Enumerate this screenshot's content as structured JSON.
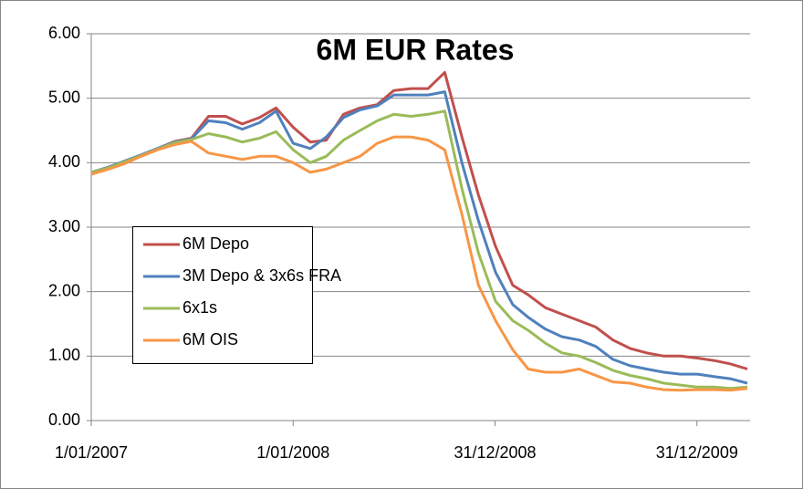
{
  "chart_data": {
    "type": "line",
    "title": "6M EUR Rates",
    "x": [
      "2007-01-01",
      "2007-02-01",
      "2007-03-01",
      "2007-04-01",
      "2007-05-01",
      "2007-06-01",
      "2007-07-01",
      "2007-08-01",
      "2007-09-01",
      "2007-10-01",
      "2007-11-01",
      "2007-12-01",
      "2008-01-01",
      "2008-02-01",
      "2008-03-01",
      "2008-04-01",
      "2008-05-01",
      "2008-06-01",
      "2008-07-01",
      "2008-08-01",
      "2008-09-01",
      "2008-10-01",
      "2008-11-01",
      "2008-12-01",
      "2009-01-01",
      "2009-02-01",
      "2009-03-01",
      "2009-04-01",
      "2009-05-01",
      "2009-06-01",
      "2009-07-01",
      "2009-08-01",
      "2009-09-01",
      "2009-10-01",
      "2009-11-01",
      "2009-12-01",
      "2010-01-01",
      "2010-02-01",
      "2010-03-01",
      "2010-04-01"
    ],
    "series": [
      {
        "name": "6M Depo",
        "color": "#c0504d",
        "values": [
          3.85,
          3.93,
          4.02,
          4.12,
          4.22,
          4.33,
          4.38,
          4.72,
          4.72,
          4.6,
          4.7,
          4.85,
          4.55,
          4.32,
          4.35,
          4.75,
          4.85,
          4.9,
          5.12,
          5.15,
          5.15,
          5.4,
          4.4,
          3.5,
          2.7,
          2.1,
          1.95,
          1.75,
          1.65,
          1.55,
          1.45,
          1.25,
          1.12,
          1.05,
          1.0,
          1.0,
          0.97,
          0.93,
          0.88,
          0.8
        ]
      },
      {
        "name": "3M Depo & 3x6s FRA",
        "color": "#4f81bd",
        "values": [
          3.85,
          3.93,
          4.02,
          4.12,
          4.22,
          4.32,
          4.37,
          4.65,
          4.62,
          4.52,
          4.62,
          4.8,
          4.3,
          4.22,
          4.4,
          4.7,
          4.82,
          4.88,
          5.05,
          5.05,
          5.05,
          5.1,
          4.0,
          3.1,
          2.3,
          1.8,
          1.6,
          1.42,
          1.3,
          1.25,
          1.15,
          0.95,
          0.85,
          0.8,
          0.75,
          0.72,
          0.72,
          0.68,
          0.65,
          0.58
        ]
      },
      {
        "name": "6x1s",
        "color": "#9bbb59",
        "values": [
          3.85,
          3.92,
          4.01,
          4.11,
          4.21,
          4.31,
          4.36,
          4.45,
          4.4,
          4.32,
          4.38,
          4.48,
          4.2,
          4.0,
          4.1,
          4.35,
          4.5,
          4.65,
          4.75,
          4.72,
          4.75,
          4.8,
          3.6,
          2.6,
          1.85,
          1.55,
          1.4,
          1.2,
          1.05,
          1.0,
          0.9,
          0.78,
          0.7,
          0.65,
          0.58,
          0.55,
          0.52,
          0.52,
          0.5,
          0.52
        ]
      },
      {
        "name": "6M OIS",
        "color": "#f79646",
        "values": [
          3.82,
          3.9,
          3.98,
          4.1,
          4.2,
          4.28,
          4.33,
          4.15,
          4.1,
          4.05,
          4.1,
          4.1,
          4.0,
          3.85,
          3.9,
          4.0,
          4.1,
          4.3,
          4.4,
          4.4,
          4.35,
          4.2,
          3.2,
          2.1,
          1.55,
          1.1,
          0.8,
          0.75,
          0.75,
          0.8,
          0.7,
          0.6,
          0.58,
          0.52,
          0.48,
          0.47,
          0.48,
          0.48,
          0.47,
          0.5
        ]
      }
    ],
    "xlim": [
      "2007-01-01",
      "2010-04-06"
    ],
    "xticks": [
      {
        "value": "2007-01-01",
        "label": "1/01/2007"
      },
      {
        "value": "2008-01-01",
        "label": "1/01/2008"
      },
      {
        "value": "2008-12-31",
        "label": "31/12/2008"
      },
      {
        "value": "2009-12-31",
        "label": "31/12/2009"
      }
    ],
    "ylim": [
      0,
      6
    ],
    "yticks": [
      {
        "value": 0,
        "label": "0.00"
      },
      {
        "value": 1,
        "label": "1.00"
      },
      {
        "value": 2,
        "label": "2.00"
      },
      {
        "value": 3,
        "label": "3.00"
      },
      {
        "value": 4,
        "label": "4.00"
      },
      {
        "value": 5,
        "label": "5.00"
      },
      {
        "value": 6,
        "label": "6.00"
      }
    ],
    "grid": true
  }
}
